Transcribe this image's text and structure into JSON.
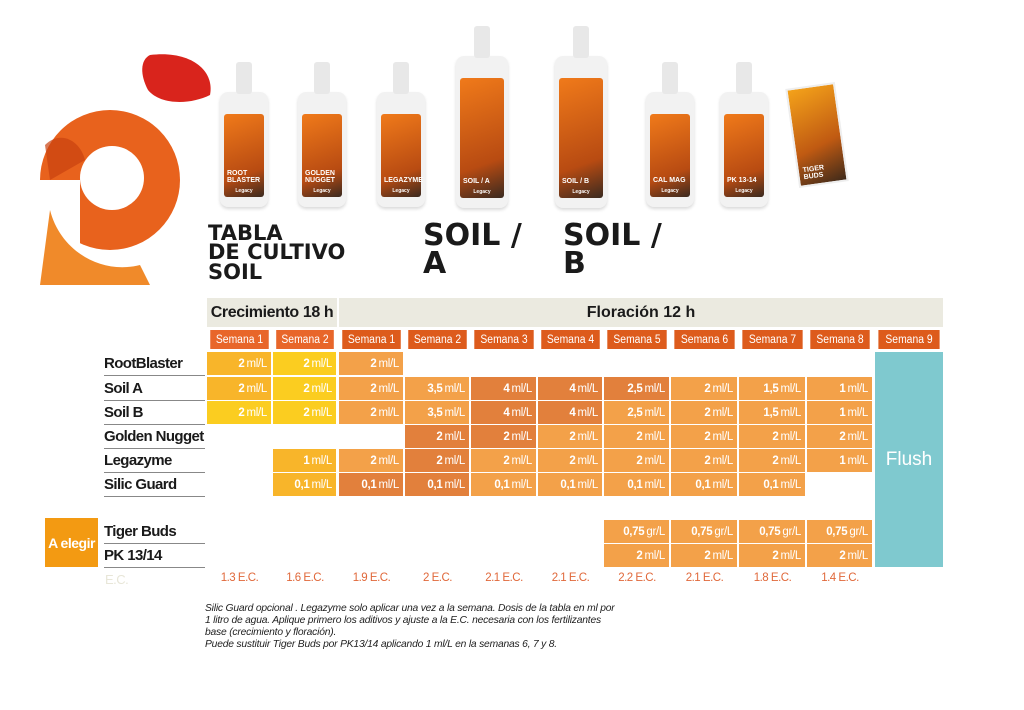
{
  "colors": {
    "growth_cell": "#f8b52a",
    "growth_cell_light": "#fbcd20",
    "flower_cell": "#f3a149",
    "flower_cell_dark": "#e2803c",
    "growth_header": "#e8662a",
    "flower_header": "#dd5b1c",
    "flush": "#7fc9cf",
    "header_bg": "#ebeae0",
    "ec_text": "#e0683a",
    "a_elegir": "#f39a12"
  },
  "logo": {
    "icon": "legacy-g-logo"
  },
  "products": [
    {
      "name": "ROOT BLASTER",
      "brand": "Legacy"
    },
    {
      "name": "GOLDEN NUGGET",
      "brand": "Legacy"
    },
    {
      "name": "LEGAZYME",
      "brand": "Legacy"
    },
    {
      "name": "SOIL / A",
      "brand": "Legacy"
    },
    {
      "name": "SOIL / B",
      "brand": "Legacy"
    },
    {
      "name": "CAL MAG",
      "brand": "Legacy"
    },
    {
      "name": "PK 13-14",
      "brand": "Legacy"
    },
    {
      "name": "TIGER BUDS",
      "brand": "Legacy"
    }
  ],
  "titles": {
    "main": [
      "TABLA",
      "DE CULTIVO",
      "SOIL"
    ],
    "soil_a": [
      "SOIL /",
      "A"
    ],
    "soil_b": [
      "SOIL /",
      "B"
    ]
  },
  "table": {
    "phases": [
      {
        "label": "Crecimiento 18 h"
      },
      {
        "label": "Floración 12 h"
      }
    ],
    "weeks": [
      "Semana 1",
      "Semana 2",
      "Semana 1",
      "Semana 2",
      "Semana 3",
      "Semana 4",
      "Semana 5",
      "Semana 6",
      "Semana 7",
      "Semana 8",
      "Semana 9"
    ],
    "rows": [
      {
        "name": "RootBlaster",
        "values": [
          [
            "2",
            "ml/L"
          ],
          [
            "2",
            "ml/L"
          ],
          [
            "2",
            "ml/L"
          ],
          null,
          null,
          null,
          null,
          null,
          null,
          null
        ]
      },
      {
        "name": "Soil A",
        "values": [
          [
            "2",
            "ml/L"
          ],
          [
            "2",
            "ml/L"
          ],
          [
            "2",
            "ml/L"
          ],
          [
            "3,5",
            "ml/L"
          ],
          [
            "4",
            "ml/L"
          ],
          [
            "4",
            "ml/L"
          ],
          [
            "2,5",
            "ml/L"
          ],
          [
            "2",
            "ml/L"
          ],
          [
            "1,5",
            "ml/L"
          ],
          [
            "1",
            "ml/L"
          ]
        ]
      },
      {
        "name": "Soil B",
        "values": [
          [
            "2",
            "ml/L"
          ],
          [
            "2",
            "ml/L"
          ],
          [
            "2",
            "ml/L"
          ],
          [
            "3,5",
            "ml/L"
          ],
          [
            "4",
            "ml/L"
          ],
          [
            "4",
            "ml/L"
          ],
          [
            "2,5",
            "ml/L"
          ],
          [
            "2",
            "ml/L"
          ],
          [
            "1,5",
            "ml/L"
          ],
          [
            "1",
            "ml/L"
          ]
        ]
      },
      {
        "name": "Golden Nugget",
        "values": [
          null,
          null,
          null,
          [
            "2",
            "ml/L"
          ],
          [
            "2",
            "ml/L"
          ],
          [
            "2",
            "ml/L"
          ],
          [
            "2",
            "ml/L"
          ],
          [
            "2",
            "ml/L"
          ],
          [
            "2",
            "ml/L"
          ],
          [
            "2",
            "ml/L"
          ]
        ]
      },
      {
        "name": "Legazyme",
        "values": [
          null,
          [
            "1",
            "ml/L"
          ],
          [
            "2",
            "ml/L"
          ],
          [
            "2",
            "ml/L"
          ],
          [
            "2",
            "ml/L"
          ],
          [
            "2",
            "ml/L"
          ],
          [
            "2",
            "ml/L"
          ],
          [
            "2",
            "ml/L"
          ],
          [
            "2",
            "ml/L"
          ],
          [
            "1",
            "ml/L"
          ]
        ]
      },
      {
        "name": "Silic Guard",
        "values": [
          null,
          [
            "0,1",
            "ml/L"
          ],
          [
            "0,1",
            "ml/L"
          ],
          [
            "0,1",
            "ml/L"
          ],
          [
            "0,1",
            "ml/L"
          ],
          [
            "0,1",
            "ml/L"
          ],
          [
            "0,1",
            "ml/L"
          ],
          [
            "0,1",
            "ml/L"
          ],
          [
            "0,1",
            "ml/L"
          ],
          null
        ]
      },
      {
        "name": "Tiger Buds",
        "values": [
          null,
          null,
          null,
          null,
          null,
          null,
          [
            "0,75",
            "gr/L"
          ],
          [
            "0,75",
            "gr/L"
          ],
          [
            "0,75",
            "gr/L"
          ],
          [
            "0,75",
            "gr/L"
          ]
        ]
      },
      {
        "name": "PK 13/14",
        "values": [
          null,
          null,
          null,
          null,
          null,
          null,
          [
            "2",
            "ml/L"
          ],
          [
            "2",
            "ml/L"
          ],
          [
            "2",
            "ml/L"
          ],
          [
            "2",
            "ml/L"
          ]
        ]
      }
    ],
    "flush_label": "Flush",
    "a_elegir_label": "A elegir",
    "ec_label": "E.C.",
    "ec_values": [
      "1.3 E.C.",
      "1.6 E.C.",
      "1.9 E.C.",
      "2 E.C.",
      "2.1 E.C.",
      "2.1 E.C.",
      "2.2 E.C.",
      "2.1 E.C.",
      "1.8 E.C.",
      "1.4 E.C."
    ]
  },
  "notes": [
    "Silic Guard opcional . Legazyme solo aplicar una vez a la semana. Dosis de la tabla en ml por",
    "1 litro de agua. Aplique primero los aditivos y ajuste a la E.C. necesaria con los fertilizantes",
    "base (crecimiento y floración).",
    "Puede sustituir Tiger Buds por PK13/14 aplicando 1 ml/L en la semanas 6, 7 y 8."
  ]
}
